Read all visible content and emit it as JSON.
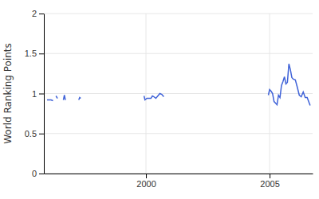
{
  "chart_data": {
    "type": "line",
    "y_label": "World Ranking Points",
    "x": [
      1996.0,
      1996.08,
      1996.16,
      1996.24,
      1996.3,
      1996.36,
      1996.42,
      1996.54,
      1996.66,
      1996.7,
      1996.74,
      1997.0,
      1997.28,
      1997.32,
      1997.36,
      1998.6,
      1999.92,
      1999.96,
      2000.04,
      2000.12,
      2000.2,
      2000.26,
      2000.32,
      2000.4,
      2000.48,
      2000.56,
      2000.64,
      2000.72,
      2002.8,
      2004.95,
      2005.0,
      2005.06,
      2005.12,
      2005.18,
      2005.24,
      2005.3,
      2005.36,
      2005.42,
      2005.48,
      2005.54,
      2005.6,
      2005.66,
      2005.72,
      2005.78,
      2005.84,
      2005.9,
      2005.96,
      2006.04,
      2006.12,
      2006.2,
      2006.28,
      2006.36,
      2006.44,
      2006.52,
      2006.64
    ],
    "values": [
      0.92,
      0.92,
      0.92,
      0.91,
      null,
      0.97,
      0.94,
      null,
      0.92,
      0.98,
      0.92,
      null,
      0.92,
      0.95,
      0.94,
      null,
      0.97,
      0.92,
      0.94,
      0.94,
      0.94,
      0.97,
      0.96,
      0.94,
      0.97,
      1.0,
      0.99,
      0.96,
      null,
      0.98,
      1.05,
      1.03,
      1.0,
      0.9,
      0.88,
      0.86,
      0.98,
      0.95,
      1.1,
      1.15,
      1.21,
      1.12,
      1.14,
      1.37,
      1.3,
      1.2,
      1.18,
      1.17,
      1.08,
      0.98,
      0.96,
      1.02,
      0.95,
      0.95,
      0.85
    ],
    "color": "#4063d8",
    "xlim": [
      1995.87,
      2006.74
    ],
    "xticks": [
      2000,
      2005
    ],
    "ylim": [
      0,
      2
    ],
    "yticks": [
      0,
      0.5,
      1,
      1.5,
      2
    ],
    "grid": true
  }
}
